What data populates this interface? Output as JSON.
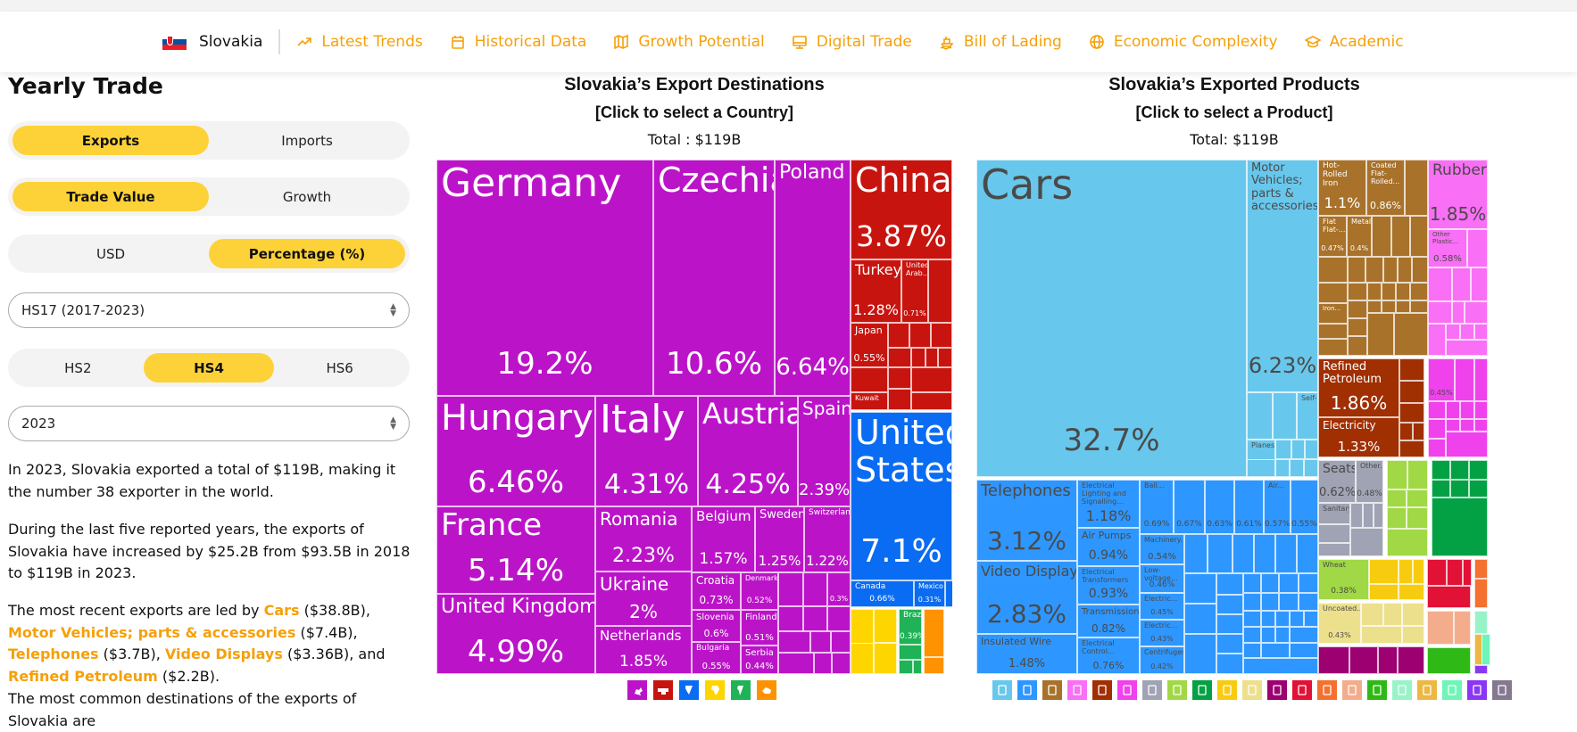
{
  "nav": {
    "country": "Slovakia",
    "links": [
      {
        "label": "Latest Trends",
        "icon": "trending-up-icon"
      },
      {
        "label": "Historical Data",
        "icon": "calendar-icon"
      },
      {
        "label": "Growth Potential",
        "icon": "map-growth-icon"
      },
      {
        "label": "Digital Trade",
        "icon": "monitor-icon"
      },
      {
        "label": "Bill of Lading",
        "icon": "ship-icon"
      },
      {
        "label": "Economic Complexity",
        "icon": "globe-icon"
      },
      {
        "label": "Academic",
        "icon": "graduation-cap-icon"
      }
    ]
  },
  "sidebar": {
    "title": "Yearly Trade",
    "flow": {
      "options": [
        "Exports",
        "Imports"
      ],
      "selected": "Exports"
    },
    "measure": {
      "options": [
        "Trade Value",
        "Growth"
      ],
      "selected": "Trade Value"
    },
    "unit": {
      "options": [
        "USD",
        "Percentage (%)"
      ],
      "selected": "Percentage (%)"
    },
    "classification": "HS17 (2017-2023)",
    "depth": {
      "options": [
        "HS2",
        "HS4",
        "HS6"
      ],
      "selected": "HS4"
    },
    "year": "2023",
    "paragraphs": {
      "p1": "In 2023, Slovakia exported a total of $119B, making it the number 38 exporter in the world.",
      "p2": "During the last five reported years, the exports of Slovakia have increased by $25.2B from $93.5B in 2018 to $119B in 2023.",
      "p3_intro": "The most recent exports are led by ",
      "p3_items": [
        {
          "name": "Cars",
          "value": " ($38.8B), "
        },
        {
          "name": "Motor Vehicles; parts & accessories",
          "value": " ($7.4B), "
        },
        {
          "name": "Telephones",
          "value": " ($3.7B), "
        },
        {
          "name": "Video Displays",
          "value": " ($3.36B), and "
        },
        {
          "name": "Refined Petroleum",
          "value": " ($2.2B)."
        }
      ],
      "p4": "The most common destinations of the exports of Slovakia are"
    }
  },
  "destinations": {
    "title": "Slovakia’s Export Destinations",
    "subtitle": "[Click to select a Country]",
    "total": "Total : $119B"
  },
  "products": {
    "title": "Slovakia’s Exported Products",
    "subtitle": "[Click to select a Product]",
    "total": "Total: $119B"
  },
  "chart_data": [
    {
      "type": "treemap",
      "title": "Slovakia’s Export Destinations",
      "unit": "percent",
      "items": [
        {
          "name": "Germany",
          "value": 19.2,
          "region": "Europe"
        },
        {
          "name": "Czechia",
          "value": 10.6,
          "region": "Europe"
        },
        {
          "name": "Poland",
          "value": 6.64,
          "region": "Europe"
        },
        {
          "name": "Hungary",
          "value": 6.46,
          "region": "Europe"
        },
        {
          "name": "Italy",
          "value": 4.31,
          "region": "Europe"
        },
        {
          "name": "Austria",
          "value": 4.25,
          "region": "Europe"
        },
        {
          "name": "Spain",
          "value": 2.39,
          "region": "Europe"
        },
        {
          "name": "France",
          "value": 5.14,
          "region": "Europe"
        },
        {
          "name": "United Kingdom",
          "value": 4.99,
          "region": "Europe"
        },
        {
          "name": "Romania",
          "value": 2.23,
          "region": "Europe"
        },
        {
          "name": "Ukraine",
          "value": 2.0,
          "region": "Europe"
        },
        {
          "name": "Netherlands",
          "value": 1.85,
          "region": "Europe"
        },
        {
          "name": "Belgium",
          "value": 1.57,
          "region": "Europe"
        },
        {
          "name": "Sweden",
          "value": 1.25,
          "region": "Europe"
        },
        {
          "name": "Switzerland",
          "value": 1.22,
          "region": "Europe"
        },
        {
          "name": "Croatia",
          "value": 0.73,
          "region": "Europe"
        },
        {
          "name": "Denmark",
          "value": 0.52,
          "region": "Europe"
        },
        {
          "name": "Slovenia",
          "value": 0.6,
          "region": "Europe"
        },
        {
          "name": "Finland",
          "value": 0.51,
          "region": "Europe"
        },
        {
          "name": "Bulgaria",
          "value": 0.55,
          "region": "Europe"
        },
        {
          "name": "Serbia",
          "value": 0.44,
          "region": "Europe"
        },
        {
          "name": "",
          "value": 0.3,
          "region": "Europe"
        },
        {
          "name": "China",
          "value": 3.87,
          "region": "Asia"
        },
        {
          "name": "Turkey",
          "value": 1.28,
          "region": "Asia"
        },
        {
          "name": "United Arab...",
          "value": 0.71,
          "region": "Asia"
        },
        {
          "name": "Japan",
          "value": 0.55,
          "region": "Asia"
        },
        {
          "name": "Kuwait",
          "value": null,
          "region": "Asia"
        },
        {
          "name": "United States",
          "value": 7.1,
          "region": "North America"
        },
        {
          "name": "Canada",
          "value": 0.66,
          "region": "North America"
        },
        {
          "name": "Mexico",
          "value": 0.31,
          "region": "North America"
        },
        {
          "name": "Brazil",
          "value": 0.39,
          "region": "South America"
        }
      ],
      "legend": [
        {
          "region": "Europe",
          "color": "#bb14c8"
        },
        {
          "region": "Asia",
          "color": "#c8140f"
        },
        {
          "region": "North America",
          "color": "#0a6cf2"
        },
        {
          "region": "Africa",
          "color": "#ffd500"
        },
        {
          "region": "South America",
          "color": "#1fb256"
        },
        {
          "region": "Oceania",
          "color": "#ff9200"
        }
      ]
    },
    {
      "type": "treemap",
      "title": "Slovakia’s Exported Products",
      "unit": "percent",
      "items": [
        {
          "name": "Cars",
          "value": 32.7,
          "section": "Transportation"
        },
        {
          "name": "Motor Vehicles; parts & accessories",
          "value": 6.23,
          "section": "Transportation"
        },
        {
          "name": "Planes...",
          "value": 0.34,
          "section": "Transportation"
        },
        {
          "name": "Self-...",
          "value": null,
          "section": "Transportation"
        },
        {
          "name": "Telephones",
          "value": 3.12,
          "section": "Machines"
        },
        {
          "name": "Video Displays",
          "value": 2.83,
          "section": "Machines"
        },
        {
          "name": "Insulated Wire",
          "value": 1.48,
          "section": "Machines"
        },
        {
          "name": "Electrical Lighting and Signalling...",
          "value": 1.18,
          "section": "Machines"
        },
        {
          "name": "Air Pumps",
          "value": 0.94,
          "section": "Machines"
        },
        {
          "name": "Electrical Transformers",
          "value": 0.93,
          "section": "Machines"
        },
        {
          "name": "Transmissions",
          "value": 0.82,
          "section": "Machines"
        },
        {
          "name": "Electrical Control...",
          "value": 0.76,
          "section": "Machines"
        },
        {
          "name": "Ball...",
          "value": 0.69,
          "section": "Machines"
        },
        {
          "name": "",
          "value": 0.67,
          "section": "Machines"
        },
        {
          "name": "",
          "value": 0.63,
          "section": "Machines"
        },
        {
          "name": "",
          "value": 0.61,
          "section": "Machines"
        },
        {
          "name": "Air...",
          "value": 0.57,
          "section": "Machines"
        },
        {
          "name": "",
          "value": 0.55,
          "section": "Machines"
        },
        {
          "name": "Machinery...",
          "value": 0.54,
          "section": "Machines"
        },
        {
          "name": "Low-voltage...",
          "value": 0.46,
          "section": "Machines"
        },
        {
          "name": "Electric...",
          "value": 0.45,
          "section": "Machines"
        },
        {
          "name": "Electric...",
          "value": 0.43,
          "section": "Machines"
        },
        {
          "name": "Centrifuges",
          "value": 0.42,
          "section": "Machines"
        },
        {
          "name": "Hot-Rolled Iron",
          "value": 1.1,
          "section": "Metals"
        },
        {
          "name": "Coated Flat-Rolled...",
          "value": 0.86,
          "section": "Metals"
        },
        {
          "name": "Flat Flat-...",
          "value": 0.47,
          "section": "Metals"
        },
        {
          "name": "Metal...",
          "value": 0.4,
          "section": "Metals"
        },
        {
          "name": "Iron...",
          "value": null,
          "section": "Metals"
        },
        {
          "name": "Rubber Tires",
          "value": 1.85,
          "section": "Plastics and Rubbers"
        },
        {
          "name": "Other Plastic...",
          "value": 0.58,
          "section": "Plastics and Rubbers"
        },
        {
          "name": "Refined Petroleum",
          "value": 1.86,
          "section": "Mineral Products"
        },
        {
          "name": "Electricity",
          "value": 1.33,
          "section": "Mineral Products"
        },
        {
          "name": "",
          "value": 0.45,
          "section": "Chemical Products"
        },
        {
          "name": "Seats",
          "value": 0.62,
          "section": "Miscellaneous"
        },
        {
          "name": "Other...",
          "value": 0.48,
          "section": "Miscellaneous"
        },
        {
          "name": "Sanitary...",
          "value": null,
          "section": "Miscellaneous"
        },
        {
          "name": "Wheat",
          "value": 0.38,
          "section": "Vegetable Products"
        },
        {
          "name": "Uncoated...",
          "value": 0.43,
          "section": "Paper Goods"
        }
      ],
      "legend": [
        {
          "section": "Transportation",
          "color": "#68c7ec"
        },
        {
          "section": "Machines",
          "color": "#2e97ff"
        },
        {
          "section": "Metals",
          "color": "#a8722b"
        },
        {
          "section": "Plastics and Rubbers",
          "color": "#f96ff5"
        },
        {
          "section": "Mineral Products",
          "color": "#a02f02"
        },
        {
          "section": "Chemical Products",
          "color": "#ef42ed"
        },
        {
          "section": "Miscellaneous",
          "color": "#a0a3b4"
        },
        {
          "section": "Vegetable Products",
          "color": "#a1d845"
        },
        {
          "section": "Textiles",
          "color": "#04a144"
        },
        {
          "section": "Foodstuffs",
          "color": "#f7cc10"
        },
        {
          "section": "Paper Goods",
          "color": "#ede08c"
        },
        {
          "section": "Instruments",
          "color": "#9c0071"
        },
        {
          "section": "Weapons",
          "color": "#e21136"
        },
        {
          "section": "Stone and Glass",
          "color": "#f4712f"
        },
        {
          "section": "Animal Products",
          "color": "#f4ad8c"
        },
        {
          "section": "Animal and Vegetable Bi-Products",
          "color": "#2fb916"
        },
        {
          "section": "Footwear and Headwear",
          "color": "#98f3c9"
        },
        {
          "section": "Animal Hides",
          "color": "#ecb844"
        },
        {
          "section": "Precious Metals",
          "color": "#6ef5b7"
        },
        {
          "section": "Arts and Antiques",
          "color": "#8a37f3"
        },
        {
          "section": "Wood Products",
          "color": "#857890"
        }
      ]
    }
  ]
}
